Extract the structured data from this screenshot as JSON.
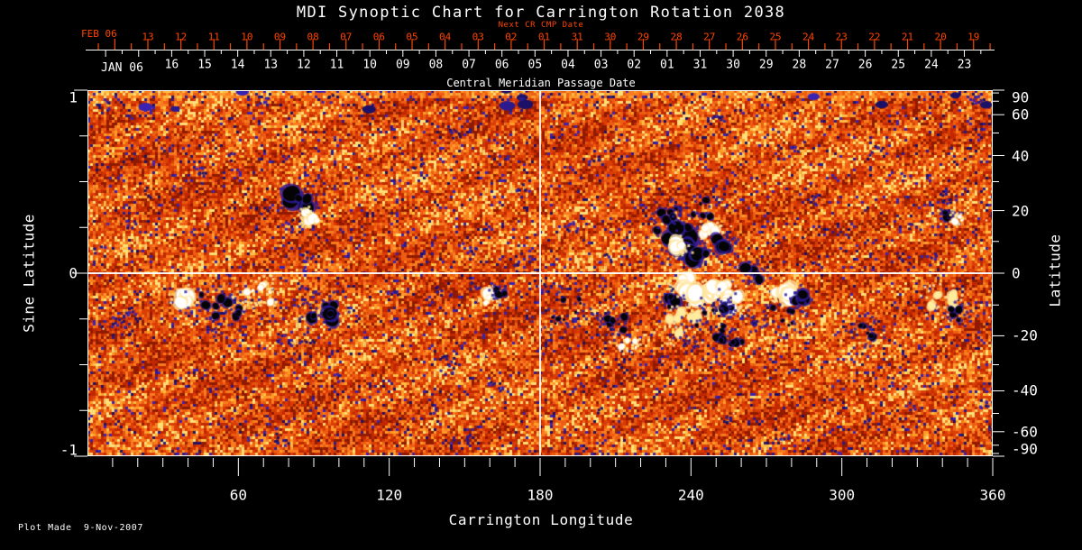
{
  "title": "MDI Synoptic Chart for Carrington Rotation 2038",
  "colors": {
    "background": "#000000",
    "axis_white": "#ffffff",
    "axis_red": "#ff4400"
  },
  "top_axis_next_cr": {
    "caption": "Next CR CMP Date",
    "month_label": "FEB 06",
    "dates": [
      "13",
      "12",
      "11",
      "10",
      "09",
      "08",
      "07",
      "06",
      "05",
      "04",
      "03",
      "02",
      "01",
      "31",
      "30",
      "29",
      "28",
      "27",
      "26",
      "25",
      "24",
      "23",
      "22",
      "21",
      "20",
      "19"
    ]
  },
  "top_axis_cmp": {
    "caption": "Central Meridian Passage Date",
    "month_label": "JAN 06",
    "dates": [
      "16",
      "15",
      "14",
      "13",
      "12",
      "11",
      "10",
      "09",
      "08",
      "07",
      "06",
      "05",
      "04",
      "03",
      "02",
      "01",
      "31",
      "30",
      "29",
      "28",
      "27",
      "26",
      "25",
      "24",
      "23"
    ]
  },
  "left_axis": {
    "title": "Sine Latitude",
    "ticks": [
      "1",
      "0",
      "-1"
    ],
    "tick_values": [
      1,
      0,
      -1
    ]
  },
  "right_axis": {
    "title": "Latitude",
    "ticks": [
      "90",
      "60",
      "40",
      "20",
      "0",
      "-20",
      "-40",
      "-60",
      "-90"
    ],
    "tick_values": [
      90,
      60,
      40,
      20,
      0,
      -20,
      -40,
      -60,
      -90
    ]
  },
  "bottom_axis": {
    "title": "Carrington Longitude",
    "ticks": [
      "60",
      "120",
      "180",
      "240",
      "300",
      "360"
    ],
    "tick_values": [
      60,
      120,
      180,
      240,
      300,
      360
    ]
  },
  "footer": {
    "text": "Plot Made  9-Nov-2007"
  },
  "chart_data": {
    "type": "heatmap",
    "title": "MDI Synoptic Chart for Carrington Rotation 2038",
    "xlabel": "Carrington Longitude",
    "ylabel_left": "Sine Latitude",
    "ylabel_right": "Latitude",
    "x_range": [
      0,
      360
    ],
    "y_range_sine_latitude": [
      -1,
      1
    ],
    "x_major_tick_step": 60,
    "x_minor_tick_step": 10,
    "y_minor_tick_step_sine": 0.25,
    "right_axis_ticks_deg": [
      90,
      60,
      40,
      20,
      0,
      -20,
      -40,
      -60,
      -90
    ],
    "reference_lines": {
      "equator_sine_latitude": 0,
      "meridian_longitude": 180
    },
    "legend_position": "none",
    "grid": false,
    "colormap": "red-orange solar magnetogram: orange/red weak field, yellow bright network, white = positive polarity active regions, black with dark-blue fringe = negative polarity",
    "active_regions": [
      {
        "lon": 84,
        "sinlat": 0.4,
        "polarity": "negative",
        "r": 9,
        "n": 6,
        "spread": 11
      },
      {
        "lon": 89,
        "sinlat": 0.31,
        "polarity": "positive",
        "r": 7,
        "n": 5,
        "spread": 8
      },
      {
        "lon": 39,
        "sinlat": -0.13,
        "polarity": "positive",
        "r": 8,
        "n": 6,
        "spread": 10
      },
      {
        "lon": 53,
        "sinlat": -0.17,
        "polarity": "negative",
        "r": 6,
        "n": 10,
        "spread": 22
      },
      {
        "lon": 68,
        "sinlat": -0.11,
        "polarity": "positive",
        "r": 4,
        "n": 6,
        "spread": 14
      },
      {
        "lon": 94,
        "sinlat": -0.21,
        "polarity": "negative",
        "r": 8,
        "n": 8,
        "spread": 14
      },
      {
        "lon": 161,
        "sinlat": -0.13,
        "polarity": "positive",
        "r": 7,
        "n": 5,
        "spread": 8
      },
      {
        "lon": 164,
        "sinlat": -0.1,
        "polarity": "negative",
        "r": 4,
        "n": 4,
        "spread": 6
      },
      {
        "lon": 233,
        "sinlat": 0.2,
        "polarity": "negative",
        "r": 11,
        "n": 9,
        "spread": 20
      },
      {
        "lon": 241,
        "sinlat": 0.12,
        "polarity": "negative",
        "r": 9,
        "n": 7,
        "spread": 14
      },
      {
        "lon": 236,
        "sinlat": 0.14,
        "polarity": "positive",
        "r": 7,
        "n": 5,
        "spread": 8
      },
      {
        "lon": 247,
        "sinlat": 0.23,
        "polarity": "positive",
        "r": 7,
        "n": 5,
        "spread": 8
      },
      {
        "lon": 253,
        "sinlat": 0.17,
        "polarity": "negative",
        "r": 7,
        "n": 5,
        "spread": 8
      },
      {
        "lon": 231,
        "sinlat": 0.31,
        "polarity": "negative",
        "r": 5,
        "n": 5,
        "spread": 12
      },
      {
        "lon": 244,
        "sinlat": 0.36,
        "polarity": "negative",
        "r": 4,
        "n": 5,
        "spread": 16
      },
      {
        "lon": 238,
        "sinlat": -0.06,
        "polarity": "positive",
        "r": 8,
        "n": 6,
        "spread": 10
      },
      {
        "lon": 245,
        "sinlat": -0.13,
        "polarity": "positive",
        "r": 10,
        "n": 7,
        "spread": 12
      },
      {
        "lon": 252,
        "sinlat": -0.08,
        "polarity": "positive",
        "r": 8,
        "n": 6,
        "spread": 10
      },
      {
        "lon": 257,
        "sinlat": -0.16,
        "polarity": "positive",
        "r": 7,
        "n": 5,
        "spread": 9
      },
      {
        "lon": 233,
        "sinlat": -0.16,
        "polarity": "negative",
        "r": 6,
        "n": 5,
        "spread": 8
      },
      {
        "lon": 254,
        "sinlat": -0.19,
        "polarity": "negative",
        "r": 5,
        "n": 4,
        "spread": 7
      },
      {
        "lon": 264,
        "sinlat": 0.0,
        "polarity": "negative",
        "r": 6,
        "n": 5,
        "spread": 9
      },
      {
        "lon": 237,
        "sinlat": -0.26,
        "polarity": "positive",
        "r": 6,
        "n": 8,
        "spread": 18,
        "tint": "yellow"
      },
      {
        "lon": 251,
        "sinlat": -0.29,
        "polarity": "negative",
        "r": 4,
        "n": 14,
        "spread": 26
      },
      {
        "lon": 215,
        "sinlat": -0.38,
        "polarity": "positive",
        "r": 4,
        "n": 5,
        "spread": 10
      },
      {
        "lon": 210,
        "sinlat": -0.28,
        "polarity": "negative",
        "r": 4,
        "n": 5,
        "spread": 12
      },
      {
        "lon": 191,
        "sinlat": -0.21,
        "polarity": "negative",
        "r": 3,
        "n": 8,
        "spread": 20
      },
      {
        "lon": 277,
        "sinlat": -0.12,
        "polarity": "positive",
        "r": 9,
        "n": 6,
        "spread": 9
      },
      {
        "lon": 283,
        "sinlat": -0.13,
        "polarity": "negative",
        "r": 7,
        "n": 5,
        "spread": 8
      },
      {
        "lon": 276,
        "sinlat": -0.23,
        "polarity": "negative",
        "r": 3,
        "n": 6,
        "spread": 16
      },
      {
        "lon": 343,
        "sinlat": 0.32,
        "polarity": "negative",
        "r": 6,
        "n": 4,
        "spread": 6
      },
      {
        "lon": 346,
        "sinlat": 0.3,
        "polarity": "positive",
        "r": 4,
        "n": 3,
        "spread": 5
      },
      {
        "lon": 340,
        "sinlat": -0.16,
        "polarity": "positive",
        "r": 5,
        "n": 7,
        "spread": 14,
        "tint": "yellow"
      },
      {
        "lon": 347,
        "sinlat": -0.22,
        "polarity": "negative",
        "r": 6,
        "n": 5,
        "spread": 10
      },
      {
        "lon": 309,
        "sinlat": -0.32,
        "polarity": "negative",
        "r": 4,
        "n": 6,
        "spread": 12
      }
    ]
  }
}
